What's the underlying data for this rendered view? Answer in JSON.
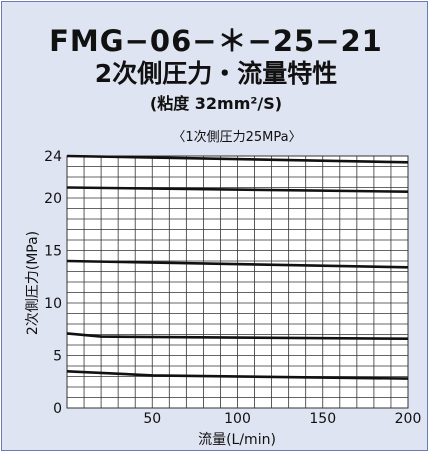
{
  "header": {
    "model": "FMG−06−＊−25−21",
    "subtitle": "2次側圧力・流量特性",
    "viscosity": "(粘度 32mm²/S)"
  },
  "chart_data": {
    "type": "line",
    "title": "〈1次側圧力25MPa〉",
    "xlabel": "流量(L/min)",
    "ylabel": "2次側圧力(MPa)",
    "xlim": [
      0,
      200
    ],
    "ylim": [
      0,
      24
    ],
    "x_ticks": [
      "50",
      "100",
      "150",
      "200"
    ],
    "y_ticks": [
      "0",
      "5",
      "10",
      "15",
      "20",
      "24"
    ],
    "grid": true,
    "series": [
      {
        "x": [
          0,
          200
        ],
        "values": [
          24.0,
          23.4
        ]
      },
      {
        "x": [
          0,
          200
        ],
        "values": [
          21.0,
          20.6
        ]
      },
      {
        "x": [
          0,
          200
        ],
        "values": [
          14.0,
          13.4
        ]
      },
      {
        "x": [
          0,
          20,
          200
        ],
        "values": [
          7.1,
          6.8,
          6.6
        ]
      },
      {
        "x": [
          0,
          50,
          200
        ],
        "values": [
          3.5,
          3.1,
          2.8
        ]
      }
    ]
  },
  "colors": {
    "panel_bg": "#dfe4f2",
    "plot_bg": "#ffffff",
    "grid": "#333333",
    "line": "#111111"
  }
}
